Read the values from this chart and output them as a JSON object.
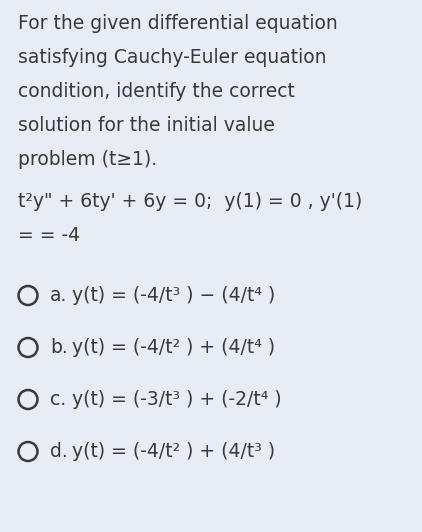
{
  "background_color": "#e8ecf5",
  "text_color": "#3a3a3a",
  "title_lines": [
    "For the given differential equation",
    "satisfying Cauchy-Euler equation",
    "condition, identify the correct",
    "solution for the initial value",
    "problem (t≥1)."
  ],
  "equation_line1": "t²y\" + 6ty' + 6y = 0;  y(1) = 0 , y'(1)",
  "equation_line2": "= = -4",
  "options": [
    {
      "label": "a.",
      "text": "y(t) = (-4/t³ ) − (4/t⁴ )"
    },
    {
      "label": "b.",
      "text": "y(t) = (-4/t² ) + (4/t⁴ )"
    },
    {
      "label": "c.",
      "text": "y(t) = (-3/t³ ) + (-2/t⁴ )"
    },
    {
      "label": "d.",
      "text": "y(t) = (-4/t² ) + (4/t³ )"
    }
  ],
  "font_size": 13.5,
  "circle_linewidth": 1.8
}
